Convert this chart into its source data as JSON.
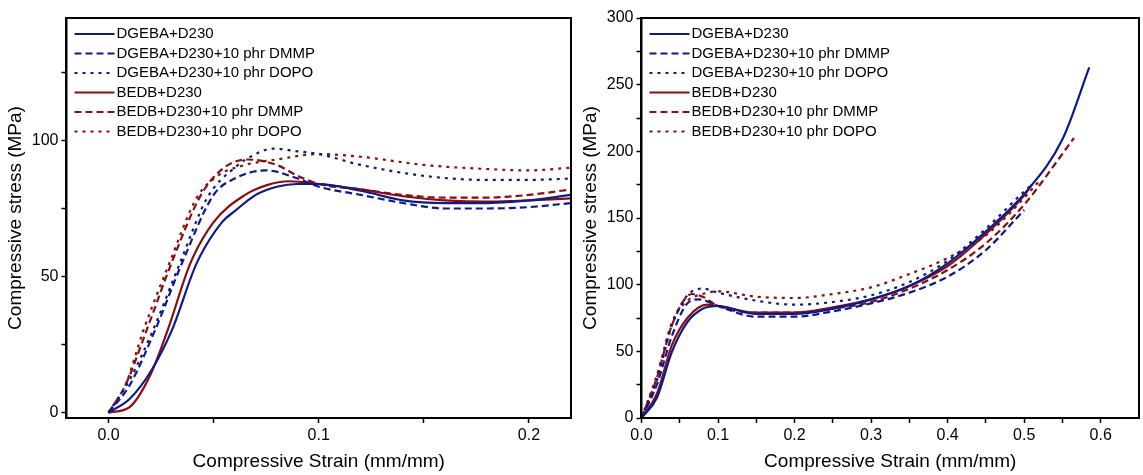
{
  "chart_data": [
    {
      "type": "line",
      "xlabel": "Compressive Strain (mm/mm)",
      "ylabel": "Compressive stress (MPa)",
      "xlim": [
        -0.02,
        0.22
      ],
      "ylim": [
        -2,
        145
      ],
      "xticks": [
        {
          "value": 0,
          "label": "0.0"
        },
        {
          "value": 0.05,
          "label": null
        },
        {
          "value": 0.1,
          "label": "0.1"
        },
        {
          "value": 0.15,
          "label": null
        },
        {
          "value": 0.2,
          "label": "0.2"
        }
      ],
      "yticks": [
        0,
        {
          "value": 25,
          "label": null
        },
        50,
        {
          "value": 75,
          "label": null
        },
        100,
        {
          "value": 125,
          "label": null
        }
      ],
      "grid": false,
      "legend": "top left",
      "marker": "none",
      "series": [
        {
          "name": "DGEBA+D230",
          "color": "#0d1a8c",
          "line_style": "solid",
          "x": [
            0,
            0.01,
            0.02,
            0.03,
            0.042,
            0.054,
            0.06,
            0.07,
            0.08,
            0.09,
            0.1,
            0.12,
            0.14,
            0.16,
            0.18,
            0.2,
            0.22
          ],
          "values": [
            0,
            5,
            15,
            30,
            55,
            70,
            74,
            80,
            83,
            84,
            84,
            81.5,
            78,
            77,
            77,
            78,
            80
          ]
        },
        {
          "name": "DGEBA+D230+10 phr DMMP",
          "color": "#0d1a8c",
          "line_style": "dashed",
          "x": [
            0,
            0.01,
            0.022,
            0.035,
            0.05,
            0.06,
            0.075,
            0.09,
            0.1,
            0.12,
            0.14,
            0.16,
            0.18,
            0.2,
            0.22
          ],
          "values": [
            0,
            10,
            30,
            55,
            80,
            86,
            89,
            86,
            83,
            80,
            77,
            75,
            75,
            75.5,
            77
          ]
        },
        {
          "name": "DGEBA+D230+10 phr DOPO",
          "color": "#0d1a8c",
          "line_style": "dotted",
          "x": [
            0,
            0.01,
            0.021,
            0.034,
            0.047,
            0.06,
            0.07,
            0.078,
            0.09,
            0.1,
            0.12,
            0.15,
            0.18,
            0.2,
            0.22
          ],
          "values": [
            0,
            12,
            30,
            55,
            79,
            90,
            95,
            97,
            96,
            95,
            91,
            87,
            85.5,
            85.5,
            86
          ]
        },
        {
          "name": "BEDB+D230",
          "color": "#8b0d0d",
          "line_style": "solid",
          "x": [
            0,
            0.01,
            0.02,
            0.028,
            0.039,
            0.05,
            0.065,
            0.075,
            0.086,
            0.1,
            0.12,
            0.14,
            0.16,
            0.18,
            0.2,
            0.22
          ],
          "values": [
            0,
            2,
            14,
            30,
            55,
            70,
            80,
            83.5,
            85,
            84,
            82,
            79.5,
            78,
            77.5,
            78,
            78.7
          ]
        },
        {
          "name": "BEDB+D230+10 phr DMMP",
          "color": "#8b0d0d",
          "line_style": "dashed",
          "x": [
            0,
            0.008,
            0.018,
            0.03,
            0.044,
            0.055,
            0.066,
            0.08,
            0.09,
            0.1,
            0.12,
            0.14,
            0.16,
            0.18,
            0.2,
            0.22
          ],
          "values": [
            0,
            10,
            30,
            55,
            80,
            90,
            93,
            91,
            87,
            84,
            82,
            80,
            79,
            79,
            80,
            82
          ]
        },
        {
          "name": "BEDB+D230+10 phr DOPO",
          "color": "#8b0d0d",
          "line_style": "dotted",
          "x": [
            0,
            0.008,
            0.0165,
            0.029,
            0.042,
            0.052,
            0.065,
            0.08,
            0.1,
            0.12,
            0.15,
            0.18,
            0.2,
            0.22
          ],
          "values": [
            0,
            10,
            30,
            55,
            79,
            87,
            91,
            93,
            95,
            94,
            91,
            89.5,
            89,
            90
          ]
        }
      ]
    },
    {
      "type": "line",
      "xlabel": "Compressive Strain (mm/mm)",
      "ylabel": "Compressive stress (MPa)",
      "xlim": [
        0,
        0.65
      ],
      "ylim": [
        0,
        300
      ],
      "xticks": [
        {
          "value": 0,
          "label": "0.0"
        },
        {
          "value": 0.05,
          "label": null
        },
        {
          "value": 0.1,
          "label": "0.1"
        },
        {
          "value": 0.15,
          "label": null
        },
        {
          "value": 0.2,
          "label": "0.2"
        },
        {
          "value": 0.25,
          "label": null
        },
        {
          "value": 0.3,
          "label": "0.3"
        },
        {
          "value": 0.35,
          "label": null
        },
        {
          "value": 0.4,
          "label": "0.4"
        },
        {
          "value": 0.45,
          "label": null
        },
        {
          "value": 0.5,
          "label": "0.5"
        },
        {
          "value": 0.55,
          "label": null
        },
        {
          "value": 0.6,
          "label": "0.6"
        }
      ],
      "yticks": [
        0,
        {
          "value": 25,
          "label": null
        },
        50,
        {
          "value": 75,
          "label": null
        },
        100,
        {
          "value": 125,
          "label": null
        },
        150,
        {
          "value": 175,
          "label": null
        },
        200,
        {
          "value": 225,
          "label": null
        },
        250,
        {
          "value": 275,
          "label": null
        },
        300
      ],
      "grid": false,
      "legend": "top left",
      "marker": "none",
      "series": [
        {
          "name": "DGEBA+D230",
          "color": "#0d1a8c",
          "line_style": "solid",
          "x": [
            0,
            0.02,
            0.04,
            0.06,
            0.08,
            0.1,
            0.15,
            0.2,
            0.25,
            0.3,
            0.35,
            0.4,
            0.45,
            0.5,
            0.55,
            0.585
          ],
          "values": [
            0,
            15,
            50,
            72,
            82,
            84,
            78,
            78,
            82,
            89,
            99,
            116,
            140,
            168,
            209,
            263
          ]
        },
        {
          "name": "DGEBA+D230+10 phr DMMP",
          "color": "#0d1a8c",
          "line_style": "dashed",
          "x": [
            0,
            0.02,
            0.04,
            0.06,
            0.075,
            0.1,
            0.15,
            0.2,
            0.25,
            0.3,
            0.35,
            0.4,
            0.45,
            0.5
          ],
          "values": [
            0,
            25,
            62,
            86,
            89,
            84,
            76,
            76,
            80,
            86,
            94,
            106,
            126,
            156
          ]
        },
        {
          "name": "DGEBA+D230+10 phr DOPO",
          "color": "#0d1a8c",
          "line_style": "dotted",
          "x": [
            0,
            0.02,
            0.04,
            0.06,
            0.08,
            0.1,
            0.15,
            0.2,
            0.25,
            0.3,
            0.35,
            0.4,
            0.45,
            0.5,
            0.51
          ],
          "values": [
            0,
            28,
            70,
            92,
            97,
            94,
            88,
            85,
            87,
            92,
            102,
            118,
            142,
            170,
            175
          ]
        },
        {
          "name": "BEDB+D230",
          "color": "#8b0d0d",
          "line_style": "solid",
          "x": [
            0,
            0.02,
            0.04,
            0.06,
            0.086,
            0.1,
            0.15,
            0.2,
            0.25,
            0.3,
            0.35,
            0.4,
            0.45,
            0.5,
            0.51
          ],
          "values": [
            0,
            18,
            55,
            75,
            85,
            84,
            79,
            79,
            83,
            89,
            99,
            114,
            138,
            167,
            175
          ]
        },
        {
          "name": "BEDB+D230+10 phr DMMP",
          "color": "#8b0d0d",
          "line_style": "dashed",
          "x": [
            0,
            0.02,
            0.04,
            0.066,
            0.08,
            0.1,
            0.15,
            0.2,
            0.25,
            0.3,
            0.35,
            0.4,
            0.45,
            0.5,
            0.565
          ],
          "values": [
            0,
            30,
            70,
            93,
            91,
            84,
            79,
            79,
            82,
            87,
            97,
            111,
            131,
            160,
            210
          ]
        },
        {
          "name": "BEDB+D230+10 phr DOPO",
          "color": "#8b0d0d",
          "line_style": "dotted",
          "x": [
            0,
            0.02,
            0.04,
            0.06,
            0.08,
            0.1,
            0.15,
            0.2,
            0.25,
            0.3,
            0.35,
            0.4,
            0.45,
            0.5,
            0.52
          ],
          "values": [
            0,
            32,
            72,
            88,
            93,
            95,
            91,
            90,
            93,
            98,
            108,
            120,
            137,
            165,
            178
          ]
        }
      ]
    }
  ]
}
